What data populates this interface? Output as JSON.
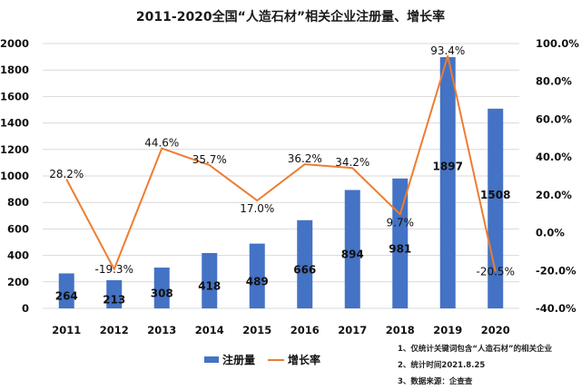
{
  "title": "2011-2020全国“人造石材”相关企业注册量、增长率",
  "legend": {
    "bar_label": "注册量",
    "line_label": "增长率"
  },
  "notes": [
    "1、仅统计关键词包含“人造石材”的相关企业",
    "2、统计时间2021.8.25",
    "3、数据来源：企查查"
  ],
  "colors": {
    "bar": "#4472C4",
    "line": "#ED7D31",
    "grid": "#D9D9D9"
  },
  "chart_data": {
    "type": "bar+line",
    "title": "2011-2020全国“人造石材”相关企业注册量、增长率",
    "categories": [
      "2011",
      "2012",
      "2013",
      "2014",
      "2015",
      "2016",
      "2017",
      "2018",
      "2019",
      "2020"
    ],
    "series": [
      {
        "name": "注册量",
        "type": "bar",
        "axis": "left",
        "values": [
          264,
          213,
          308,
          418,
          489,
          666,
          894,
          981,
          1897,
          1508
        ]
      },
      {
        "name": "增长率",
        "type": "line",
        "axis": "right",
        "unit": "%",
        "values": [
          28.2,
          -19.3,
          44.6,
          35.7,
          17.0,
          36.2,
          34.2,
          9.7,
          93.4,
          -20.5
        ]
      }
    ],
    "y_left": {
      "min": 0,
      "max": 2000,
      "step": 200,
      "ticks": [
        "0",
        "200",
        "400",
        "600",
        "800",
        "1000",
        "1200",
        "1400",
        "1600",
        "1800",
        "2000"
      ]
    },
    "y_right": {
      "min": -40,
      "max": 100,
      "step": 20,
      "ticks": [
        "-40.0%",
        "-20.0%",
        "0.0%",
        "20.0%",
        "40.0%",
        "60.0%",
        "80.0%",
        "100.0%"
      ]
    },
    "xlabel": "",
    "ylabel": "",
    "grid": true,
    "legend_position": "bottom"
  }
}
